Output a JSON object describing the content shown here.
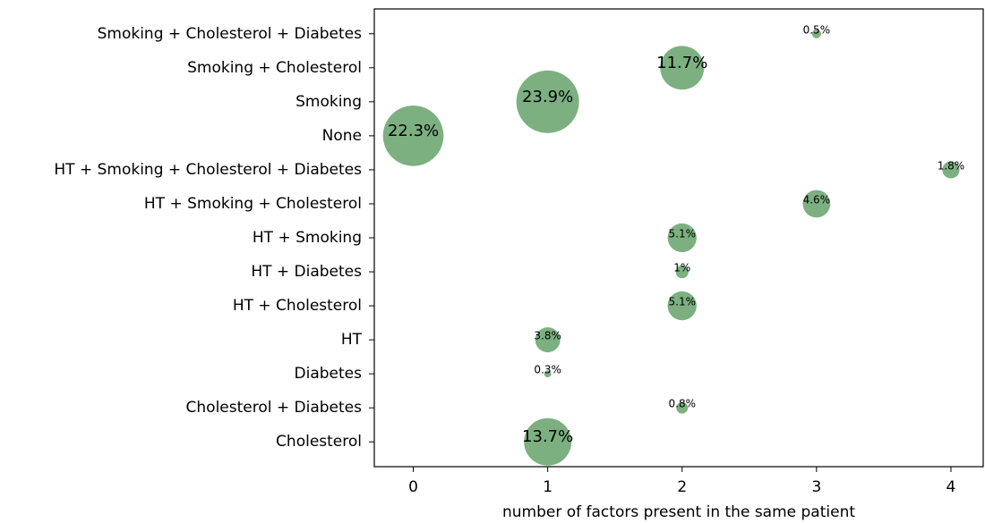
{
  "chart_data": {
    "type": "bubble",
    "xlabel": "number of factors present in the same patient",
    "categories": [
      "Cholesterol",
      "Cholesterol + Diabetes",
      "Diabetes",
      "HT",
      "HT + Cholesterol",
      "HT + Diabetes",
      "HT + Smoking",
      "HT + Smoking + Cholesterol",
      "HT + Smoking + Cholesterol + Diabetes",
      "None",
      "Smoking",
      "Smoking + Cholesterol",
      "Smoking + Cholesterol + Diabetes"
    ],
    "x": [
      1,
      2,
      1,
      1,
      2,
      2,
      2,
      3,
      4,
      0,
      1,
      2,
      3
    ],
    "sizes": [
      13.7,
      0.8,
      0.3,
      3.8,
      5.1,
      1,
      5.1,
      4.6,
      1.8,
      22.3,
      23.9,
      11.7,
      0.5
    ],
    "value_labels": [
      "13.7%",
      "0.8%",
      "0.3%",
      "3.8%",
      "5.1%",
      "1%",
      "5.1%",
      "4.6%",
      "1.8%",
      "22.3%",
      "23.9%",
      "11.7%",
      "0.5%"
    ],
    "color": "#6aa56e",
    "xlim": [
      -0.29,
      4.24
    ],
    "xticks": [
      0,
      1,
      2,
      3,
      4
    ]
  }
}
